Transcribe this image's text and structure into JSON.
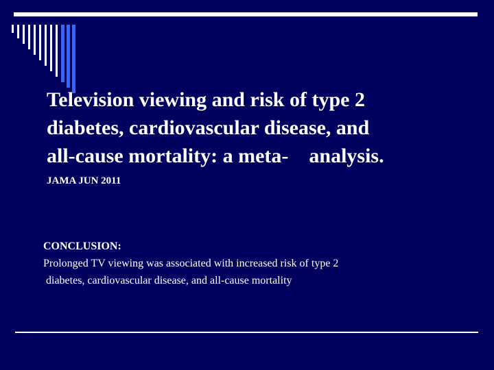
{
  "slide": {
    "title_lines": [
      "Television viewing and risk of type 2",
      "diabetes, cardiovascular disease, and",
      "all-cause mortality: a meta-    analysis."
    ],
    "citation": "JAMA JUN 2011",
    "conclusion": {
      "heading": "CONCLUSION:",
      "text_lines": [
        "Prolonged TV viewing was associated with increased risk of type 2",
        " diabetes, cardiovascular disease, and all-cause mortality"
      ]
    }
  },
  "colors": {
    "background": "#00005e",
    "text": "#ffffff",
    "stripe_light": "#ffffff",
    "stripe_accent": "#3366ff"
  },
  "decor": {
    "stripe_count": 12
  }
}
